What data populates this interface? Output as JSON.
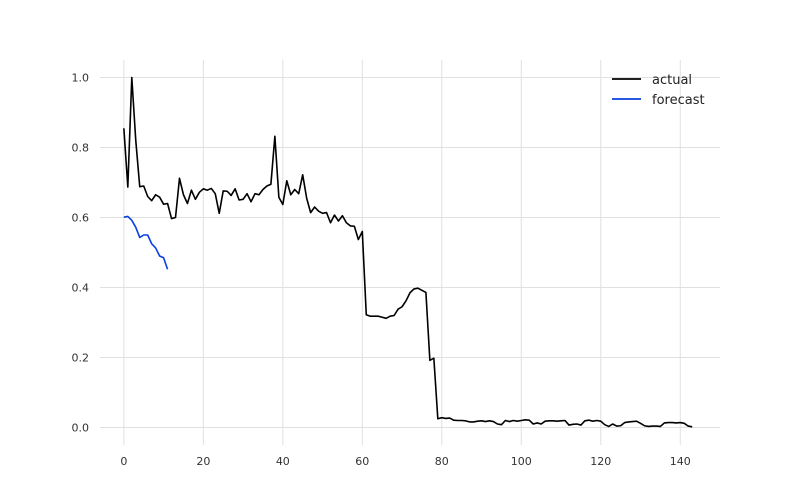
{
  "chart_data": {
    "type": "line",
    "title": "",
    "xlabel": "",
    "ylabel": "",
    "xlim": [
      -6,
      150
    ],
    "ylim": [
      -0.05,
      1.05
    ],
    "x_ticks": [
      0,
      20,
      40,
      60,
      80,
      100,
      120,
      140
    ],
    "x_tick_labels": [
      "0",
      "20",
      "40",
      "60",
      "80",
      "100",
      "120",
      "140"
    ],
    "y_ticks": [
      0.0,
      0.2,
      0.4,
      0.6,
      0.8,
      1.0
    ],
    "y_tick_labels": [
      "0.0",
      "0.2",
      "0.4",
      "0.6",
      "0.8",
      "1.0"
    ],
    "grid": true,
    "legend_position": "top-right",
    "series": [
      {
        "name": "actual",
        "color": "#000000",
        "x": [
          0,
          1,
          2,
          3,
          4,
          5,
          6,
          7,
          8,
          9,
          10,
          11,
          12,
          13,
          14,
          15,
          16,
          17,
          18,
          19,
          20,
          21,
          22,
          23,
          24,
          25,
          26,
          27,
          28,
          29,
          30,
          31,
          32,
          33,
          34,
          35,
          36,
          37,
          38,
          39,
          40,
          41,
          42,
          43,
          44,
          45,
          46,
          47,
          48,
          49,
          50,
          51,
          52,
          53,
          54,
          55,
          56,
          57,
          58,
          59,
          60,
          61,
          62,
          63,
          64,
          65,
          66,
          67,
          68,
          69,
          70,
          71,
          72,
          73,
          74,
          75,
          76,
          77,
          78,
          79,
          80,
          81,
          82,
          83,
          84,
          85,
          86,
          87,
          88,
          89,
          90,
          91,
          92,
          93,
          94,
          95,
          96,
          97,
          98,
          99,
          100,
          101,
          102,
          103,
          104,
          105,
          106,
          107,
          108,
          109,
          110,
          111,
          112,
          113,
          114,
          115,
          116,
          117,
          118,
          119,
          120,
          121,
          122,
          123,
          124,
          125,
          126,
          127,
          128,
          129,
          130,
          131,
          132,
          133,
          134,
          135,
          136,
          137,
          138,
          139,
          140,
          141,
          142,
          143
        ],
        "y": [
          0.855,
          0.687,
          1.0,
          0.82,
          0.688,
          0.69,
          0.66,
          0.648,
          0.665,
          0.658,
          0.638,
          0.64,
          0.597,
          0.6,
          0.712,
          0.665,
          0.64,
          0.678,
          0.652,
          0.672,
          0.682,
          0.678,
          0.683,
          0.668,
          0.612,
          0.676,
          0.675,
          0.663,
          0.682,
          0.65,
          0.652,
          0.668,
          0.645,
          0.668,
          0.665,
          0.68,
          0.69,
          0.695,
          0.832,
          0.658,
          0.637,
          0.705,
          0.665,
          0.68,
          0.668,
          0.722,
          0.655,
          0.614,
          0.63,
          0.618,
          0.612,
          0.614,
          0.585,
          0.607,
          0.59,
          0.605,
          0.585,
          0.576,
          0.575,
          0.537,
          0.56,
          0.322,
          0.318,
          0.318,
          0.318,
          0.315,
          0.312,
          0.318,
          0.32,
          0.338,
          0.345,
          0.362,
          0.385,
          0.396,
          0.398,
          0.392,
          0.386,
          0.192,
          0.198,
          0.025,
          0.028,
          0.026,
          0.027,
          0.021,
          0.02,
          0.02,
          0.019,
          0.016,
          0.016,
          0.018,
          0.019,
          0.017,
          0.019,
          0.017,
          0.01,
          0.008,
          0.02,
          0.017,
          0.02,
          0.018,
          0.02,
          0.022,
          0.021,
          0.01,
          0.013,
          0.01,
          0.018,
          0.019,
          0.019,
          0.018,
          0.019,
          0.02,
          0.007,
          0.009,
          0.01,
          0.007,
          0.019,
          0.021,
          0.018,
          0.02,
          0.018,
          0.008,
          0.003,
          0.01,
          0.004,
          0.005,
          0.014,
          0.016,
          0.017,
          0.018,
          0.012,
          0.005,
          0.003,
          0.004,
          0.004,
          0.003,
          0.013,
          0.014,
          0.014,
          0.013,
          0.014,
          0.012,
          0.004,
          0.002
        ]
      },
      {
        "name": "forecast",
        "color": "#0a3fe0",
        "x": [
          0,
          1,
          2,
          3,
          4,
          5,
          6,
          7,
          8,
          9,
          10,
          11
        ],
        "y": [
          0.601,
          0.603,
          0.592,
          0.572,
          0.543,
          0.55,
          0.55,
          0.525,
          0.513,
          0.49,
          0.485,
          0.452
        ]
      }
    ]
  }
}
